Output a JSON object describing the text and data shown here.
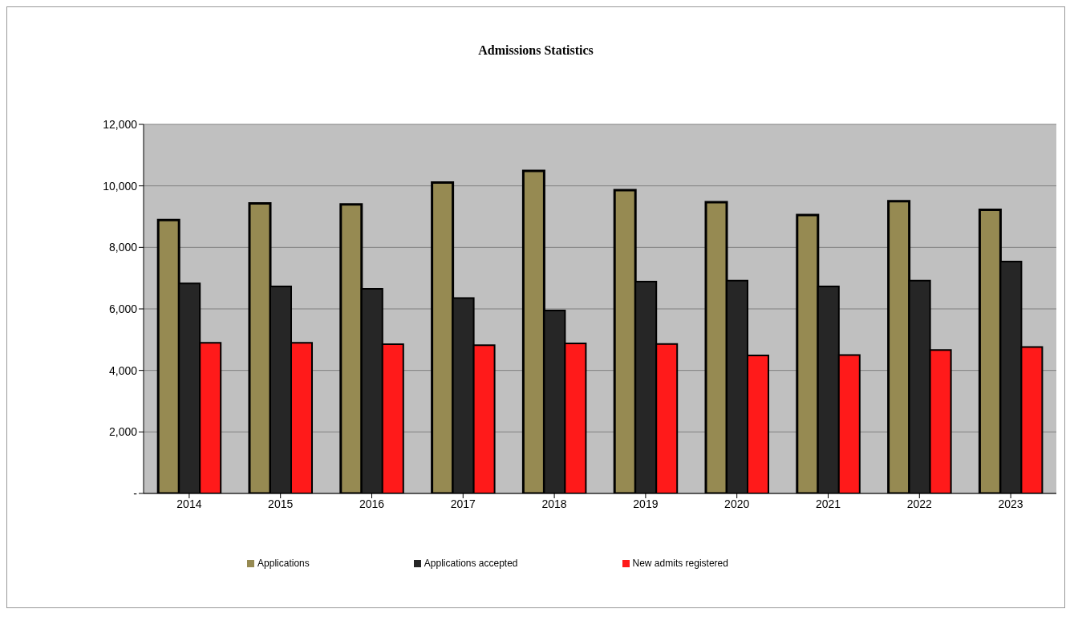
{
  "chart_data": {
    "type": "bar",
    "title": "Admissions Statistics",
    "categories": [
      "2014",
      "2015",
      "2016",
      "2017",
      "2018",
      "2019",
      "2020",
      "2021",
      "2022",
      "2023"
    ],
    "series": [
      {
        "name": "Applications",
        "color": "#968a52",
        "values": [
          8890,
          9430,
          9400,
          10110,
          10490,
          9860,
          9470,
          9050,
          9500,
          9220
        ]
      },
      {
        "name": "Applications accepted",
        "color": "#262626",
        "values": [
          6830,
          6730,
          6650,
          6350,
          5950,
          6890,
          6920,
          6730,
          6920,
          7540
        ]
      },
      {
        "name": "New admits registered",
        "color": "#ff1a1a",
        "values": [
          4900,
          4900,
          4850,
          4820,
          4880,
          4860,
          4490,
          4500,
          4660,
          4760
        ]
      }
    ],
    "ylim": [
      0,
      12000
    ],
    "yticks": [
      {
        "value": 0,
        "label": "-"
      },
      {
        "value": 2000,
        "label": "2,000"
      },
      {
        "value": 4000,
        "label": "4,000"
      },
      {
        "value": 6000,
        "label": "6,000"
      },
      {
        "value": 8000,
        "label": "8,000"
      },
      {
        "value": 10000,
        "label": "10,000"
      },
      {
        "value": 12000,
        "label": "12,000"
      }
    ],
    "grid": "y",
    "legend": "bottom"
  }
}
